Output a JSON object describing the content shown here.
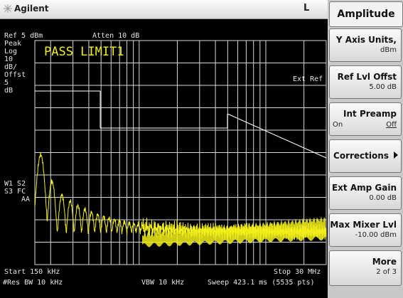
{
  "header": {
    "brand": "Agilent",
    "mode": "L"
  },
  "screen": {
    "ref": "Ref 5 dBm",
    "atten": "Atten 10 dB",
    "peak": "Peak",
    "log": "Log",
    "scale_value": "10",
    "scale_unit": "dB/",
    "offst": "Offst",
    "offst_value": "5",
    "offst_unit": "dB",
    "pass_limit": "PASS LIMIT1",
    "ext_ref": "Ext Ref",
    "w1s2": "W1 S2",
    "s3fc": "S3 FC",
    "aa": "AA",
    "start": "Start 150 kHz",
    "stop": "Stop 30 MHz",
    "res_bw": "#Res BW 10 kHz",
    "vbw": "VBW 10 kHz",
    "sweep": "Sweep 423.1 ms (5535 pts)"
  },
  "softkeys": {
    "title": "Amplitude",
    "items": [
      {
        "label": "Y Axis Units,",
        "value": "dBm"
      },
      {
        "label": "Ref Lvl Offst",
        "value": "5.00 dB"
      },
      {
        "label": "Int Preamp",
        "on": "On",
        "off": "Off"
      },
      {
        "label": "Corrections"
      },
      {
        "label": "Ext Amp Gain",
        "value": "0.00 dB"
      },
      {
        "label": "Max Mixer Lvl",
        "value": "-10.00 dBm"
      },
      {
        "label": "More",
        "value": "2 of 3"
      }
    ]
  },
  "colors": {
    "trace": "#f2ee1a",
    "limit": "#ffffff",
    "grid": "#d8d8d8",
    "screen_bg": "#000000"
  },
  "icons": {
    "logo": "agilent-spark-icon",
    "submenu": "arrow-right-icon"
  }
}
